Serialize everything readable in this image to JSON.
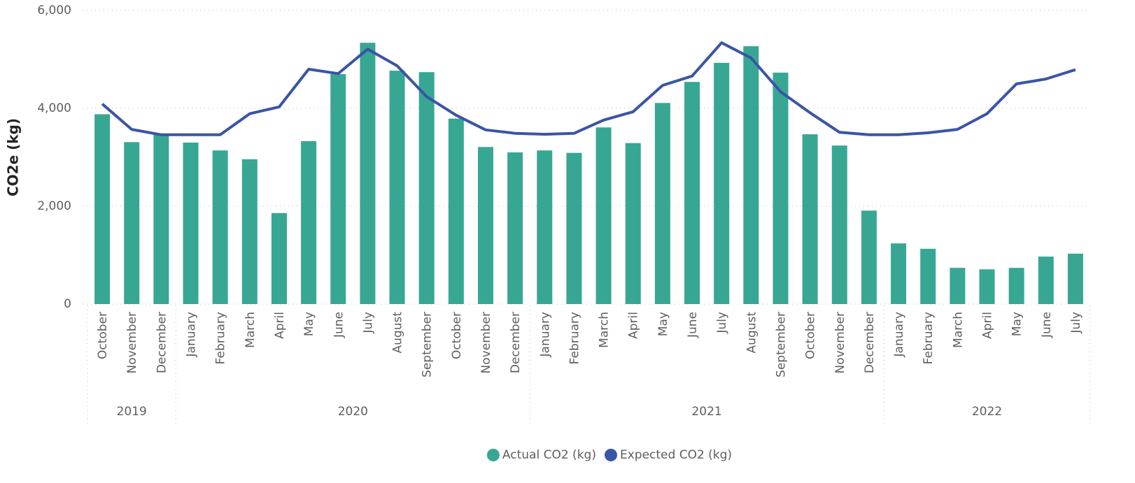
{
  "chart_data": {
    "type": "bar-line",
    "y_axis_label": "CO2e (kg)",
    "categories": [
      "October",
      "November",
      "December",
      "January",
      "February",
      "March",
      "April",
      "May",
      "June",
      "July",
      "August",
      "September",
      "October",
      "November",
      "December",
      "January",
      "February",
      "March",
      "April",
      "May",
      "June",
      "July",
      "August",
      "September",
      "October",
      "November",
      "December",
      "January",
      "February",
      "March",
      "April",
      "May",
      "June",
      "July"
    ],
    "category_groups": [
      {
        "label": "2019",
        "span": 3
      },
      {
        "label": "2020",
        "span": 12
      },
      {
        "label": "2021",
        "span": 12
      },
      {
        "label": "2022",
        "span": 7
      }
    ],
    "series": [
      {
        "name": "Actual CO2 (kg)",
        "type": "bar",
        "color": "#37a794",
        "values": [
          3880,
          3310,
          3460,
          3300,
          3140,
          2960,
          1860,
          3330,
          4700,
          5340,
          4770,
          4740,
          3790,
          3210,
          3100,
          3140,
          3090,
          3610,
          3290,
          4110,
          4540,
          4930,
          5270,
          4730,
          3470,
          3240,
          1910,
          1240,
          1130,
          740,
          710,
          740,
          970,
          1030
        ]
      },
      {
        "name": "Expected CO2 (kg)",
        "type": "line",
        "color": "#3a54a6",
        "values": [
          4090,
          3570,
          3460,
          3460,
          3460,
          3890,
          4030,
          4800,
          4710,
          5210,
          4870,
          4240,
          3860,
          3560,
          3490,
          3470,
          3490,
          3760,
          3930,
          4470,
          4660,
          5340,
          5030,
          4340,
          3910,
          3510,
          3460,
          3460,
          3500,
          3570,
          3890,
          4500,
          4600,
          4790
        ]
      }
    ],
    "ylim": [
      0,
      6000
    ],
    "yticks": [
      0,
      {
        "value": 2000,
        "label": "2,000"
      },
      {
        "value": 4000,
        "label": "4,000"
      },
      {
        "value": 6000,
        "label": "6,000"
      }
    ],
    "grid": true,
    "legend": "bottom"
  }
}
